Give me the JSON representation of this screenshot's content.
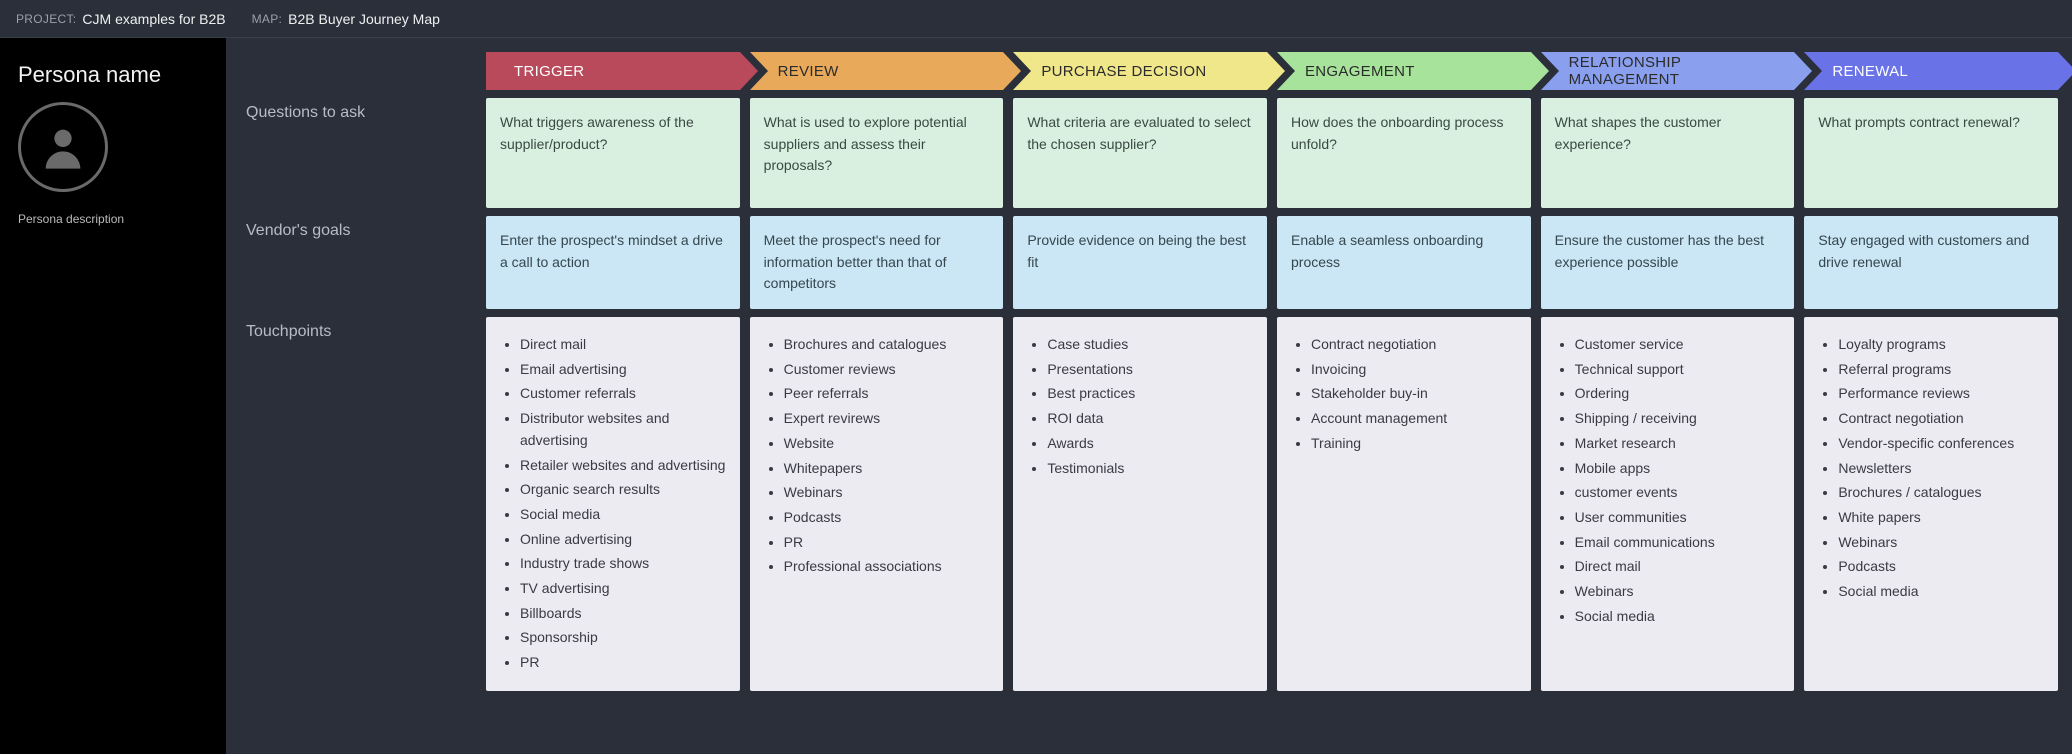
{
  "topbar": {
    "project_label": "PROJECT:",
    "project_value": "CJM examples for B2B",
    "map_label": "MAP:",
    "map_value": "B2B Buyer Journey Map"
  },
  "persona": {
    "name": "Persona name",
    "description": "Persona description"
  },
  "row_labels": {
    "questions": "Questions to ask",
    "goals": "Vendor's goals",
    "touchpoints": "Touchpoints"
  },
  "stages": [
    {
      "id": "trigger",
      "label": "TRIGGER",
      "color": "#b84a5c",
      "text_color": "#ffffff",
      "question": "What triggers awareness of the supplier/product?",
      "goal": "Enter the prospect's mindset a drive a call to action",
      "touchpoints": [
        "Direct mail",
        "Email advertising",
        "Customer referrals",
        "Distributor websites and advertising",
        "Retailer websites and advertising",
        "Organic search results",
        "Social media",
        "Online advertising",
        "Industry trade shows",
        "TV advertising",
        "Billboards",
        "Sponsorship",
        "PR"
      ]
    },
    {
      "id": "review",
      "label": "REVIEW",
      "color": "#e8a95a",
      "text_color": "#2b2b2b",
      "question": "What is used to explore potential suppliers and assess their proposals?",
      "goal": "Meet the prospect's need for information better than that of competitors",
      "touchpoints": [
        "Brochures and catalogues",
        "Customer reviews",
        "Peer referrals",
        "Expert revirews",
        "Website",
        "Whitepapers",
        "Webinars",
        "Podcasts",
        "PR",
        "Professional associations"
      ]
    },
    {
      "id": "purchase",
      "label": "PURCHASE DECISION",
      "color": "#f0e78a",
      "text_color": "#2b2b2b",
      "question": "What criteria are evaluated to select the chosen supplier?",
      "goal": "Provide evidence on being the best fit",
      "touchpoints": [
        "Case studies",
        "Presentations",
        "Best practices",
        "ROI data",
        "Awards",
        "Testimonials"
      ]
    },
    {
      "id": "engagement",
      "label": "ENGAGEMENT",
      "color": "#a7e39a",
      "text_color": "#2b2b2b",
      "question": "How does the onboarding process unfold?",
      "goal": "Enable a seamless onboarding process",
      "touchpoints": [
        "Contract negotiation",
        "Invoicing",
        "Stakeholder buy-in",
        "Account management",
        "Training"
      ]
    },
    {
      "id": "relationship",
      "label": "RELATIONSHIP MANAGEMENT",
      "color": "#8aa0ee",
      "text_color": "#2b2b2b",
      "question": "What shapes the customer experience?",
      "goal": "Ensure the customer has the best experience possible",
      "touchpoints": [
        "Customer service",
        "Technical support",
        "Ordering",
        "Shipping / receiving",
        "Market research",
        "Mobile apps",
        "customer events",
        "User communities",
        "Email communications",
        "Direct mail",
        "Webinars",
        "Social media"
      ]
    },
    {
      "id": "renewal",
      "label": "RENEWAL",
      "color": "#6a72e8",
      "text_color": "#ffffff",
      "question": "What prompts contract renewal?",
      "goal": "Stay engaged with customers and drive renewal",
      "touchpoints": [
        "Loyalty programs",
        "Referral programs",
        "Performance reviews",
        "Contract negotiation",
        "Vendor-specific conferences",
        "Newsletters",
        "Brochures / catalogues",
        "White papers",
        "Webinars",
        "Podcasts",
        "Social media"
      ]
    }
  ]
}
